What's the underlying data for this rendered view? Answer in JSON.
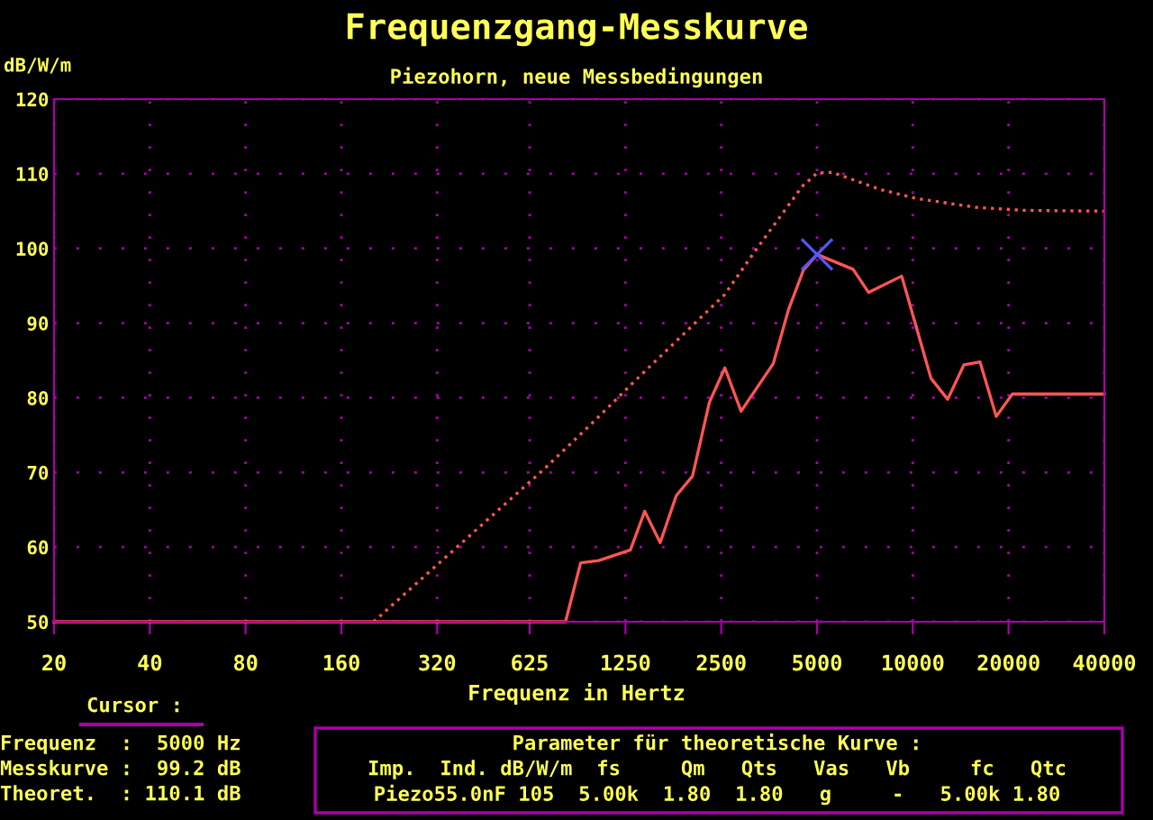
{
  "chart_data": {
    "type": "line",
    "title": "Frequenzgang-Messkurve",
    "subtitle": "Piezohorn, neue Messbedingungen",
    "xlabel": "Frequenz in Hertz",
    "ylabel": "dB/W/m",
    "log": "x",
    "xlim": [
      20,
      40000
    ],
    "xticks": [
      20,
      40,
      80,
      160,
      320,
      625,
      1250,
      2500,
      5000,
      10000,
      20000,
      40000
    ],
    "ylim": [
      50,
      120
    ],
    "yticks": [
      50,
      60,
      70,
      80,
      90,
      100,
      110,
      120
    ],
    "grid": true,
    "series": [
      {
        "color": "#ff5555",
        "line_style": "dotted",
        "marker": "none",
        "x": [
          202,
          696,
          1004,
          1334,
          2560,
          3175,
          4490,
          5000,
          5580,
          7900,
          10240,
          15800,
          22340,
          40000
        ],
        "values": [
          50,
          70.5,
          77,
          82.2,
          93.8,
          99.5,
          108.3,
          110.1,
          110.2,
          107.9,
          106.7,
          105.5,
          105.1,
          105
        ]
      },
      {
        "color": "#ff5555",
        "line_style": "solid",
        "marker": "none",
        "x": [
          20,
          810,
          904,
          1029,
          1295,
          1437,
          1607,
          1806,
          2031,
          2295,
          2567,
          2886,
          3646,
          4068,
          4532,
          5000,
          6494,
          7264,
          9228,
          11408,
          12872,
          14470,
          16272,
          18292,
          20560,
          40000
        ],
        "values": [
          50,
          50,
          57.9,
          58.2,
          59.6,
          64.8,
          60.6,
          66.9,
          69.5,
          79.4,
          84,
          78.2,
          84.6,
          91.8,
          97.1,
          99.2,
          97.2,
          94.1,
          96.3,
          82.6,
          79.8,
          84.4,
          84.8,
          77.5,
          80.5,
          80.5
        ]
      },
      {
        "type": "scatter",
        "color": "#5555ff",
        "marker": "cross",
        "x": [
          5000
        ],
        "values": [
          99.2
        ]
      }
    ],
    "annotations": [
      "Cursor :",
      "Frequenz  :  5000 Hz",
      "Messkurve :  99.2 dB",
      "Theoret.  : 110.1 dB",
      "Parameter für theoretische Kurve :",
      "Imp.  Ind. dB/W/m  fs     Qm   Qts   Vas   Vb     fc   Qtc",
      "Piezo55.0nF 105  5.00k  1.80  1.80   g     -   5.00k 1.80"
    ]
  }
}
